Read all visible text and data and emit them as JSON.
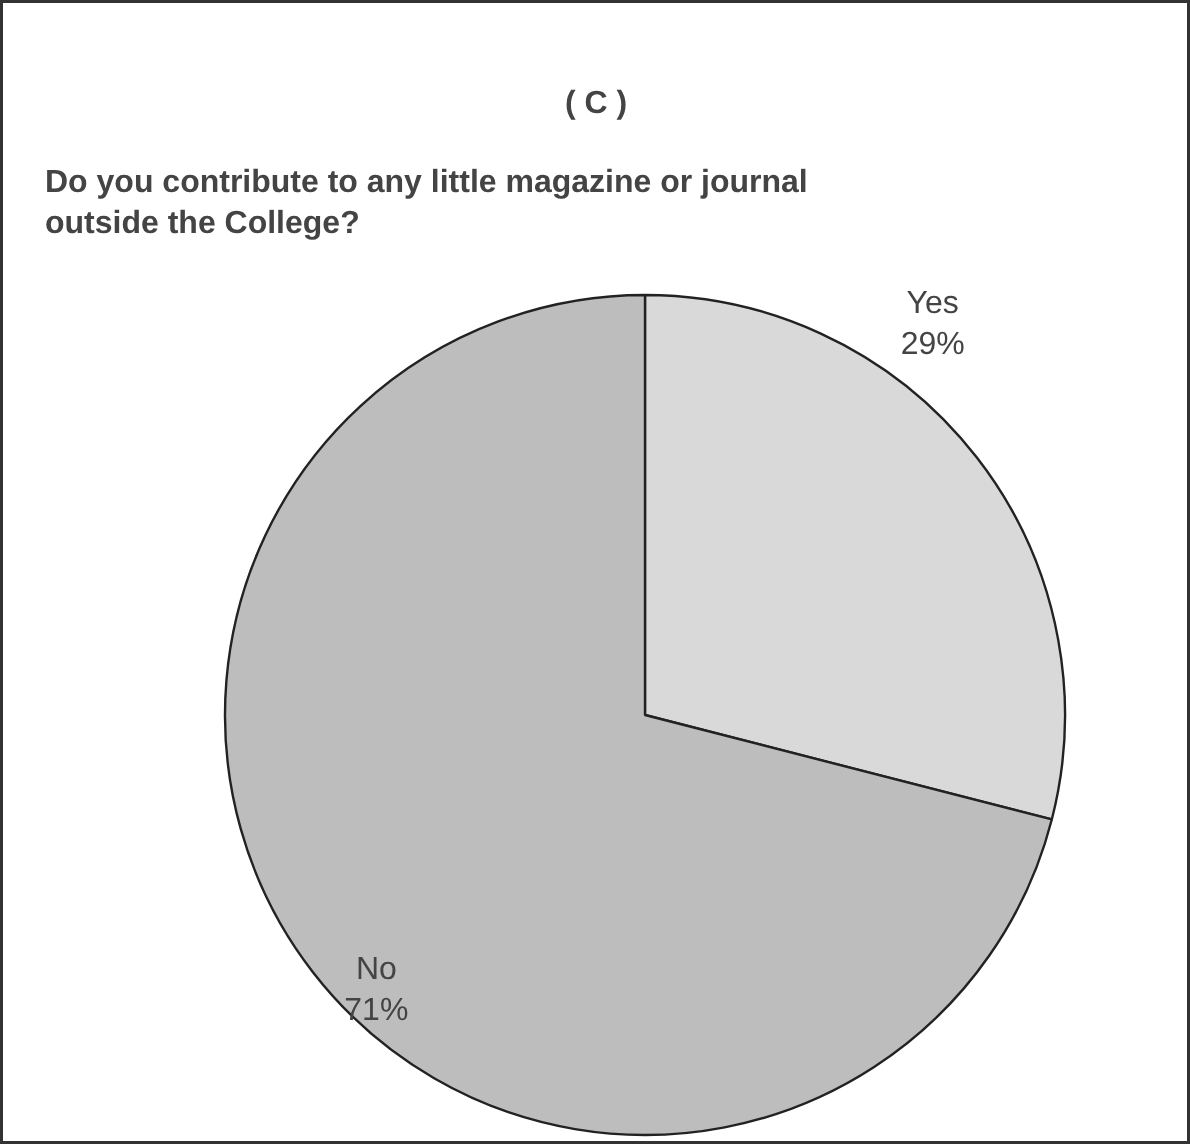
{
  "chart_data": {
    "type": "pie",
    "title": "( C )",
    "subtitle": "Do you contribute to any little magazine or journal outside the College?",
    "categories": [
      "Yes",
      "No"
    ],
    "values": [
      29,
      71
    ],
    "value_labels": [
      "29%",
      "71%"
    ],
    "colors": [
      "#d9d9d9",
      "#bdbdbd"
    ]
  }
}
